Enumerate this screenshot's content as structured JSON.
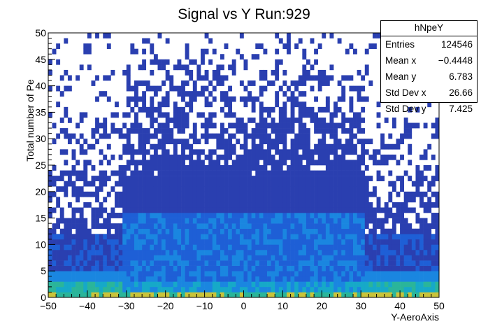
{
  "chart_data": {
    "type": "heatmap",
    "title": "Signal vs Y Run:929",
    "xlabel": "Y-AeroAxis",
    "ylabel": "Total number of Pe",
    "xlim": [
      -50,
      50
    ],
    "ylim": [
      0,
      50
    ],
    "xticks": [
      "−50",
      "−40",
      "−30",
      "−20",
      "−10",
      "0",
      "10",
      "20",
      "30",
      "40",
      "50"
    ],
    "yticks": [
      "0",
      "5",
      "10",
      "15",
      "20",
      "25",
      "30",
      "35",
      "40",
      "45",
      "50"
    ],
    "stats": {
      "name": "hNpeY",
      "rows": [
        {
          "label": "Entries",
          "value": "124546"
        },
        {
          "label": "Mean x",
          "value": "−0.4448"
        },
        {
          "label": "Mean y",
          "value": "6.783"
        },
        {
          "label": "Std Dev x",
          "value": "26.66"
        },
        {
          "label": "Std Dev y",
          "value": "7.425"
        }
      ]
    },
    "colors": {
      "dark_blue": "#2a3fb0",
      "mid_blue": "#1e5fd6",
      "light_blue": "#1a86e0",
      "cyan": "#16a9c8",
      "teal": "#2ab59a",
      "yellow": "#c9c33a"
    }
  }
}
